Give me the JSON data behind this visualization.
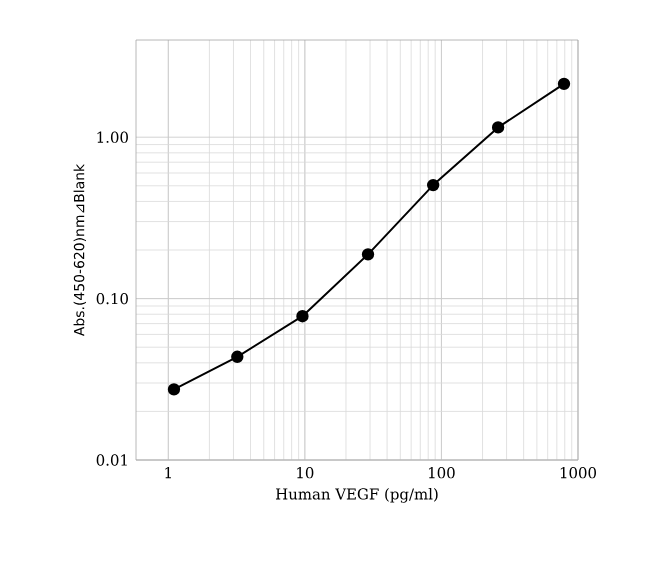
{
  "chart_data": {
    "type": "line",
    "xlabel": "Human VEGF (pg/ml)",
    "ylabel": "Abs.(450-620)nm⊿Blank",
    "log": "xy",
    "grid": true,
    "marker": "circle",
    "line_style": "solid",
    "xlim": [
      0.58,
      1000
    ],
    "xticks": [
      1,
      10,
      100,
      1000
    ],
    "ylim": [
      0.01,
      4
    ],
    "yticks": [
      {
        "value": 0.01,
        "label": "0.01"
      },
      {
        "value": 0.1,
        "label": "0.10"
      },
      {
        "value": 1,
        "label": "1.00"
      }
    ],
    "x": [
      1.1,
      3.2,
      9.6,
      29,
      87,
      260,
      790
    ],
    "series": [
      {
        "color": "#000000",
        "values": [
          0.0274,
          0.0436,
          0.0778,
          0.188,
          0.505,
          1.15,
          2.14
        ]
      }
    ]
  }
}
